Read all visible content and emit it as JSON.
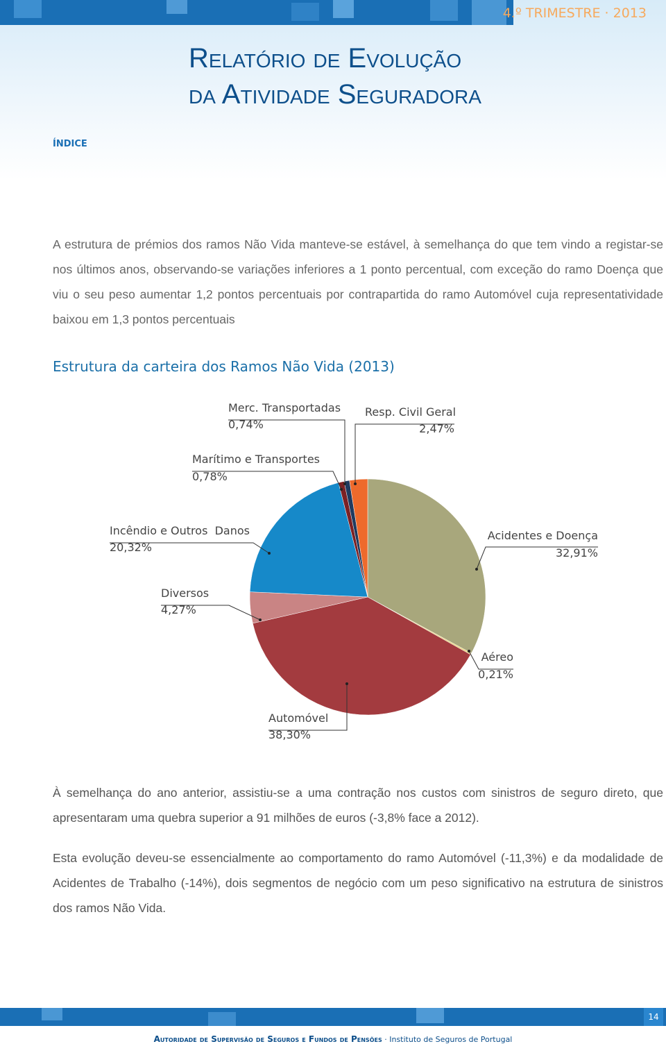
{
  "header": {
    "period": "4.º TRIMESTRE · 2013",
    "title_line1": "Relatório de Evolução",
    "title_line2": "da Atividade Seguradora",
    "index_link": "ÍNDICE"
  },
  "paragraphs": [
    "A estrutura de prémios dos ramos Não Vida manteve-se estável, à semelhança do que tem vindo a registar-se nos últimos anos, observando-se variações inferiores a 1 ponto percentual, com exceção do ramo Doença que viu o seu peso aumentar 1,2 pontos percentuais por contrapartida do ramo Automóvel cuja representatividade baixou em 1,3 pontos percentuais",
    "À semelhança do ano anterior, assistiu-se a uma contração nos custos com sinistros de seguro direto, que apresentaram uma quebra superior a 91 milhões de euros (-3,8% face a 2012).",
    "Esta evolução deveu-se essencialmente ao comportamento do ramo Automóvel (-11,3%) e da modalidade de Acidentes de Trabalho (-14%), dois segmentos de negócio com um peso significativo na estrutura de sinistros dos ramos Não Vida."
  ],
  "chart_data": {
    "type": "pie",
    "title": "Estrutura da carteira dos Ramos Não Vida (2013)",
    "categories": [
      "Acidentes e Doença",
      "Aéreo",
      "Automóvel",
      "Diversos",
      "Incêndio e Outros  Danos",
      "Marítimo e Transportes",
      "Merc. Transportadas",
      "Resp. Civil Geral"
    ],
    "values": [
      32.91,
      0.21,
      38.3,
      4.27,
      20.32,
      0.78,
      0.74,
      2.47
    ],
    "value_labels": [
      "32,91%",
      "0,21%",
      "38,30%",
      "4,27%",
      "20,32%",
      "0,78%",
      "0,74%",
      "2,47%"
    ],
    "colors": [
      "#a8a77c",
      "#e9d27c",
      "#a33b3f",
      "#c98484",
      "#1689c9",
      "#7b2124",
      "#1f3a5f",
      "#ee6a2c"
    ]
  },
  "footer": {
    "page": "14",
    "authority": "Autoridade de Supervisão de Seguros e Fundos de Pensões",
    "institute": "· Instituto de Seguros de Portugal"
  }
}
